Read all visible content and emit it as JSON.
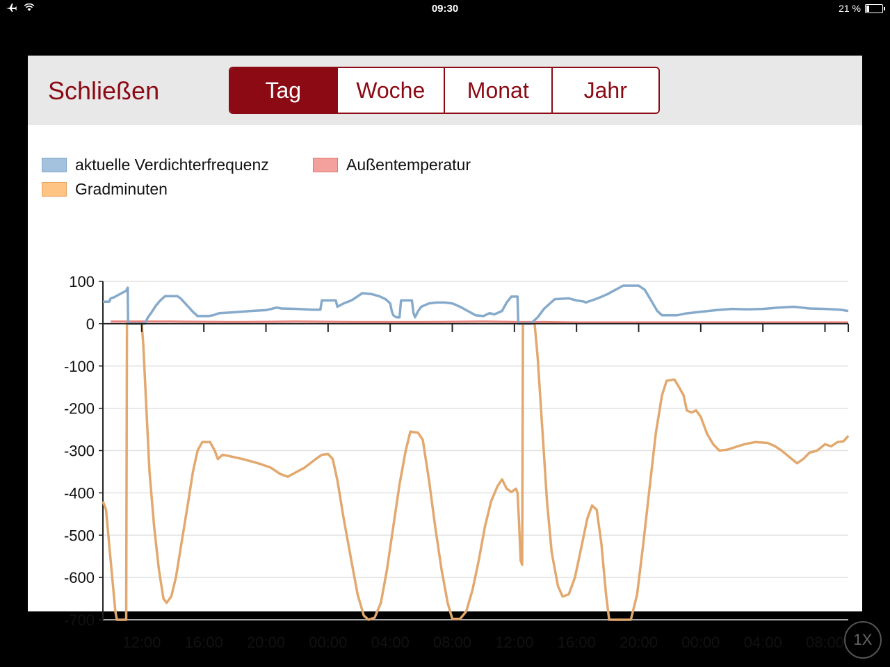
{
  "status_bar": {
    "time": "09:30",
    "battery": "21 %"
  },
  "header": {
    "close_label": "Schließen",
    "tabs": [
      {
        "label": "Tag",
        "active": true
      },
      {
        "label": "Woche",
        "active": false
      },
      {
        "label": "Monat",
        "active": false
      },
      {
        "label": "Jahr",
        "active": false
      }
    ]
  },
  "zoom_label": "1X",
  "colors": {
    "accent": "#8b0a14",
    "freq": "#8eb1d0",
    "temp": "#ef8f8a",
    "grad": "#e2a86e"
  },
  "chart_data": {
    "type": "line",
    "legend": [
      {
        "name": "aktuelle Verdichterfrequenz",
        "color": "#8eb1d0"
      },
      {
        "name": "Außentemperatur",
        "color": "#ef8f8a"
      },
      {
        "name": "Gradminuten",
        "color": "#e2a86e"
      }
    ],
    "y_ticks": [
      "100",
      "0",
      "-100",
      "-200",
      "-300",
      "-400",
      "-500",
      "-600",
      "-700"
    ],
    "ylim": [
      -700,
      100
    ],
    "x_ticks": [
      "12:00",
      "16:00",
      "20:00",
      "00:00",
      "04:00",
      "08:00",
      "12:00",
      "16:00",
      "20:00",
      "00:00",
      "04:00",
      "08:00"
    ],
    "x_tick_hours": [
      12,
      16,
      20,
      24,
      28,
      32,
      36,
      40,
      44,
      48,
      52,
      56
    ],
    "xlim_hours": [
      9.5,
      57.5
    ],
    "series": [
      {
        "name": "aktuelle Verdichterfrequenz",
        "points": [
          [
            9.5,
            52
          ],
          [
            9.9,
            52
          ],
          [
            10.0,
            60
          ],
          [
            10.2,
            62
          ],
          [
            10.5,
            68
          ],
          [
            11.0,
            78
          ],
          [
            11.1,
            85
          ],
          [
            11.12,
            0
          ],
          [
            12.2,
            0
          ],
          [
            12.4,
            15
          ],
          [
            12.6,
            25
          ],
          [
            12.9,
            42
          ],
          [
            13.2,
            55
          ],
          [
            13.5,
            65
          ],
          [
            13.8,
            65
          ],
          [
            14.3,
            65
          ],
          [
            14.5,
            60
          ],
          [
            14.7,
            52
          ],
          [
            15.0,
            40
          ],
          [
            15.3,
            28
          ],
          [
            15.6,
            18
          ],
          [
            16.3,
            18
          ],
          [
            16.6,
            20
          ],
          [
            17.0,
            25
          ],
          [
            18.0,
            27
          ],
          [
            19.0,
            30
          ],
          [
            20.0,
            32
          ],
          [
            20.7,
            38
          ],
          [
            21.0,
            36
          ],
          [
            22.0,
            35
          ],
          [
            23.0,
            33
          ],
          [
            23.5,
            33
          ],
          [
            23.6,
            55
          ],
          [
            24.5,
            55
          ],
          [
            24.6,
            40
          ],
          [
            25.0,
            48
          ],
          [
            25.5,
            55
          ],
          [
            25.8,
            62
          ],
          [
            26.2,
            72
          ],
          [
            26.8,
            70
          ],
          [
            27.3,
            65
          ],
          [
            27.7,
            58
          ],
          [
            28.0,
            48
          ],
          [
            28.1,
            30
          ],
          [
            28.2,
            20
          ],
          [
            28.4,
            15
          ],
          [
            28.6,
            15
          ],
          [
            28.7,
            55
          ],
          [
            29.4,
            55
          ],
          [
            29.5,
            25
          ],
          [
            29.6,
            15
          ],
          [
            29.8,
            30
          ],
          [
            30.0,
            40
          ],
          [
            30.5,
            48
          ],
          [
            31.0,
            50
          ],
          [
            31.5,
            50
          ],
          [
            32.0,
            48
          ],
          [
            32.5,
            40
          ],
          [
            33.0,
            30
          ],
          [
            33.5,
            20
          ],
          [
            34.0,
            18
          ],
          [
            34.4,
            25
          ],
          [
            34.7,
            22
          ],
          [
            35.2,
            30
          ],
          [
            35.5,
            50
          ],
          [
            35.8,
            64
          ],
          [
            36.2,
            64
          ],
          [
            36.25,
            0
          ],
          [
            37.0,
            0
          ],
          [
            37.2,
            5
          ],
          [
            37.5,
            15
          ],
          [
            37.7,
            25
          ],
          [
            37.9,
            35
          ],
          [
            38.2,
            45
          ],
          [
            38.6,
            58
          ],
          [
            39.5,
            60
          ],
          [
            40.0,
            55
          ],
          [
            40.5,
            52
          ],
          [
            40.6,
            50
          ],
          [
            41.2,
            58
          ],
          [
            41.5,
            62
          ],
          [
            42.0,
            70
          ],
          [
            42.5,
            80
          ],
          [
            43.0,
            90
          ],
          [
            44.0,
            90
          ],
          [
            44.4,
            80
          ],
          [
            44.8,
            55
          ],
          [
            45.2,
            30
          ],
          [
            45.5,
            20
          ],
          [
            46.5,
            20
          ],
          [
            47.0,
            24
          ],
          [
            48.0,
            28
          ],
          [
            49.0,
            32
          ],
          [
            50.0,
            35
          ],
          [
            51.0,
            34
          ],
          [
            52.0,
            35
          ],
          [
            53.0,
            38
          ],
          [
            54.0,
            40
          ],
          [
            55.0,
            36
          ],
          [
            56.0,
            35
          ],
          [
            57.0,
            33
          ],
          [
            57.5,
            30
          ]
        ]
      },
      {
        "name": "Außentemperatur",
        "points": [
          [
            10.0,
            5
          ],
          [
            14.0,
            5
          ],
          [
            18.0,
            4
          ],
          [
            22.0,
            5
          ],
          [
            26.0,
            4
          ],
          [
            30.0,
            4
          ],
          [
            34.0,
            5
          ],
          [
            36.3,
            4
          ],
          [
            38.0,
            4
          ],
          [
            40.0,
            3
          ],
          [
            44.0,
            3
          ],
          [
            48.0,
            3
          ],
          [
            52.0,
            3
          ],
          [
            57.5,
            3
          ]
        ]
      },
      {
        "name": "Gradminuten",
        "points": [
          [
            9.5,
            -420
          ],
          [
            9.7,
            -440
          ],
          [
            9.9,
            -520
          ],
          [
            10.1,
            -600
          ],
          [
            10.3,
            -680
          ],
          [
            10.4,
            -700
          ],
          [
            11.0,
            -700
          ],
          [
            11.05,
            0
          ],
          [
            12.0,
            0
          ],
          [
            12.1,
            -50
          ],
          [
            12.3,
            -200
          ],
          [
            12.5,
            -350
          ],
          [
            12.8,
            -480
          ],
          [
            13.1,
            -580
          ],
          [
            13.4,
            -650
          ],
          [
            13.6,
            -660
          ],
          [
            13.9,
            -645
          ],
          [
            14.2,
            -600
          ],
          [
            14.6,
            -510
          ],
          [
            15.0,
            -420
          ],
          [
            15.3,
            -350
          ],
          [
            15.6,
            -300
          ],
          [
            15.9,
            -280
          ],
          [
            16.4,
            -280
          ],
          [
            16.7,
            -300
          ],
          [
            16.9,
            -320
          ],
          [
            17.2,
            -310
          ],
          [
            17.5,
            -312
          ],
          [
            18.5,
            -320
          ],
          [
            19.5,
            -330
          ],
          [
            20.3,
            -340
          ],
          [
            20.9,
            -355
          ],
          [
            21.4,
            -362
          ],
          [
            22.0,
            -350
          ],
          [
            22.5,
            -340
          ],
          [
            23.2,
            -320
          ],
          [
            23.6,
            -310
          ],
          [
            24.0,
            -308
          ],
          [
            24.3,
            -320
          ],
          [
            24.6,
            -370
          ],
          [
            25.0,
            -460
          ],
          [
            25.5,
            -560
          ],
          [
            25.9,
            -640
          ],
          [
            26.3,
            -690
          ],
          [
            26.6,
            -700
          ],
          [
            27.0,
            -695
          ],
          [
            27.4,
            -660
          ],
          [
            27.8,
            -580
          ],
          [
            28.2,
            -480
          ],
          [
            28.6,
            -380
          ],
          [
            29.0,
            -300
          ],
          [
            29.3,
            -255
          ],
          [
            29.8,
            -258
          ],
          [
            30.1,
            -275
          ],
          [
            30.5,
            -370
          ],
          [
            30.9,
            -480
          ],
          [
            31.3,
            -580
          ],
          [
            31.7,
            -660
          ],
          [
            32.0,
            -698
          ],
          [
            32.5,
            -698
          ],
          [
            32.9,
            -680
          ],
          [
            33.3,
            -630
          ],
          [
            33.7,
            -560
          ],
          [
            34.1,
            -480
          ],
          [
            34.5,
            -420
          ],
          [
            34.9,
            -385
          ],
          [
            35.2,
            -368
          ],
          [
            35.5,
            -390
          ],
          [
            35.8,
            -398
          ],
          [
            36.1,
            -390
          ],
          [
            36.2,
            -400
          ],
          [
            36.3,
            -470
          ],
          [
            36.4,
            -560
          ],
          [
            36.5,
            -570
          ],
          [
            36.55,
            0
          ],
          [
            37.3,
            0
          ],
          [
            37.5,
            -80
          ],
          [
            37.8,
            -250
          ],
          [
            38.1,
            -420
          ],
          [
            38.4,
            -540
          ],
          [
            38.8,
            -620
          ],
          [
            39.1,
            -645
          ],
          [
            39.5,
            -640
          ],
          [
            39.9,
            -600
          ],
          [
            40.3,
            -530
          ],
          [
            40.7,
            -460
          ],
          [
            41.0,
            -430
          ],
          [
            41.3,
            -440
          ],
          [
            41.6,
            -520
          ],
          [
            41.9,
            -640
          ],
          [
            42.1,
            -700
          ],
          [
            43.5,
            -700
          ],
          [
            43.9,
            -640
          ],
          [
            44.3,
            -520
          ],
          [
            44.7,
            -390
          ],
          [
            45.1,
            -260
          ],
          [
            45.5,
            -170
          ],
          [
            45.8,
            -135
          ],
          [
            46.3,
            -132
          ],
          [
            46.6,
            -150
          ],
          [
            46.9,
            -170
          ],
          [
            47.1,
            -205
          ],
          [
            47.4,
            -210
          ],
          [
            47.7,
            -205
          ],
          [
            48.0,
            -220
          ],
          [
            48.4,
            -260
          ],
          [
            48.8,
            -285
          ],
          [
            49.2,
            -300
          ],
          [
            49.7,
            -298
          ],
          [
            50.2,
            -292
          ],
          [
            50.8,
            -285
          ],
          [
            51.5,
            -280
          ],
          [
            52.3,
            -282
          ],
          [
            52.8,
            -290
          ],
          [
            53.2,
            -300
          ],
          [
            53.7,
            -315
          ],
          [
            54.2,
            -330
          ],
          [
            54.6,
            -320
          ],
          [
            55.0,
            -305
          ],
          [
            55.5,
            -300
          ],
          [
            56.0,
            -285
          ],
          [
            56.4,
            -290
          ],
          [
            56.8,
            -280
          ],
          [
            57.2,
            -278
          ],
          [
            57.5,
            -265
          ]
        ]
      }
    ]
  }
}
